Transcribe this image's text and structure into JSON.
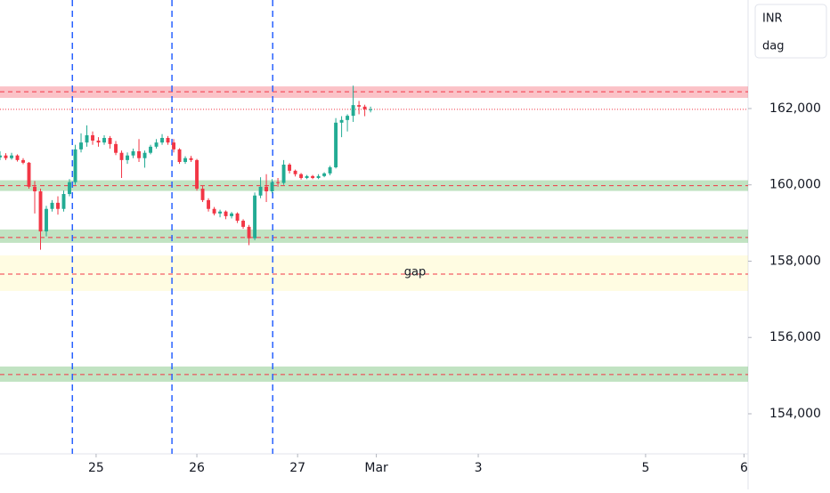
{
  "chart_data": {
    "type": "candlestick",
    "currency": "INR",
    "interval": "dag",
    "up_color": "#22ab94",
    "down_color": "#f23645",
    "x": [
      0,
      1,
      2,
      3,
      4,
      5,
      6,
      7,
      8,
      9,
      10,
      11,
      12,
      13,
      14,
      15,
      16,
      17,
      18,
      19,
      20,
      21,
      22,
      23,
      24,
      25,
      26,
      27,
      28,
      29,
      30,
      31,
      32,
      33,
      34,
      35,
      36,
      37,
      38,
      39,
      40,
      41,
      42,
      43,
      44,
      45,
      46,
      47,
      48,
      49,
      50,
      51,
      52,
      53,
      54,
      55,
      56,
      57,
      58,
      59,
      60,
      61,
      62,
      63,
      64
    ],
    "open": [
      160720,
      160770,
      160700,
      160770,
      160650,
      160580,
      159950,
      159830,
      158780,
      159370,
      159530,
      159370,
      159760,
      160070,
      160930,
      161110,
      161300,
      161160,
      161110,
      161230,
      161070,
      160840,
      160650,
      160770,
      160880,
      160700,
      160840,
      161000,
      161110,
      161230,
      161110,
      160930,
      160600,
      160700,
      160650,
      159900,
      159600,
      159370,
      159250,
      159300,
      159180,
      159250,
      159060,
      158900,
      158600,
      159720,
      159950,
      159830,
      160070,
      160050,
      160530,
      160370,
      160280,
      160180,
      160230,
      160180,
      160230,
      160300,
      160460,
      161630,
      161700,
      161810,
      162090,
      162050,
      161980
    ],
    "high": [
      160880,
      160830,
      160840,
      160800,
      160700,
      160600,
      160100,
      159900,
      159450,
      159600,
      159700,
      159850,
      160150,
      161050,
      161350,
      161560,
      161400,
      161250,
      161300,
      161280,
      161150,
      160900,
      160850,
      160950,
      161200,
      160900,
      161050,
      161200,
      161330,
      161280,
      161200,
      160960,
      160750,
      160760,
      160680,
      159970,
      159650,
      159420,
      159350,
      159330,
      159290,
      159280,
      159100,
      158950,
      159800,
      160200,
      160280,
      160150,
      160180,
      160650,
      160570,
      160400,
      160310,
      160260,
      160260,
      160280,
      160330,
      160500,
      161750,
      161800,
      161850,
      162600,
      162200,
      162100,
      162050
    ],
    "low": [
      160650,
      160650,
      160660,
      160610,
      160540,
      159900,
      159250,
      158300,
      158650,
      159300,
      159220,
      159300,
      159700,
      160000,
      160850,
      161000,
      161050,
      161000,
      161050,
      160950,
      160780,
      160180,
      160550,
      160700,
      160600,
      160450,
      160800,
      160950,
      161050,
      161050,
      160850,
      160550,
      160550,
      160600,
      159850,
      159550,
      159300,
      159200,
      159150,
      159100,
      159120,
      159000,
      158850,
      158420,
      158550,
      159650,
      159550,
      159780,
      159950,
      160000,
      160300,
      160220,
      160140,
      160150,
      160150,
      160150,
      160200,
      160250,
      160430,
      161250,
      161400,
      161650,
      161850,
      161800,
      161900
    ],
    "close": [
      160770,
      160700,
      160770,
      160650,
      160580,
      159950,
      159830,
      158780,
      159370,
      159530,
      159370,
      159760,
      160070,
      160930,
      161110,
      161300,
      161160,
      161110,
      161230,
      161070,
      160840,
      160650,
      160770,
      160880,
      160700,
      160840,
      161000,
      161110,
      161230,
      161110,
      160930,
      160600,
      160700,
      160650,
      159900,
      159600,
      159370,
      159250,
      159300,
      159180,
      159250,
      159060,
      158900,
      158600,
      159720,
      159950,
      159830,
      160070,
      160050,
      160530,
      160370,
      160280,
      160180,
      160230,
      160180,
      160230,
      160300,
      160460,
      161630,
      161700,
      161810,
      162090,
      162050,
      161980,
      161980
    ],
    "zones": [
      {
        "top": 162580,
        "bottom": 162280,
        "line": 162440,
        "color": "rgba(242,54,69,0.3)"
      },
      {
        "top": 160120,
        "bottom": 159840,
        "line": 159980,
        "color": "rgba(76,175,80,0.35)"
      },
      {
        "top": 158830,
        "bottom": 158480,
        "line": 158620,
        "color": "rgba(76,175,80,0.35)"
      },
      {
        "top": 158150,
        "bottom": 157220,
        "line": 157660,
        "color": "rgba(255,235,59,0.15)",
        "label": "gap"
      },
      {
        "top": 155240,
        "bottom": 154840,
        "line": 155030,
        "color": "rgba(76,175,80,0.35)"
      }
    ],
    "price_line": 161980,
    "vlines": [
      12.5,
      29.7,
      47.1
    ],
    "xlim": [
      0,
      129.2
    ],
    "xticks": [
      {
        "value": 16.6,
        "label": "25"
      },
      {
        "value": 34,
        "label": "26"
      },
      {
        "value": 51.4,
        "label": "27"
      },
      {
        "value": 65,
        "label": "Mar"
      },
      {
        "value": 82.6,
        "label": "3"
      },
      {
        "value": 111.5,
        "label": "5"
      },
      {
        "value": 128.5,
        "label": "6"
      }
    ],
    "ylim": [
      152950,
      164845
    ],
    "yticks": [
      {
        "value": 154000,
        "label": "154,000"
      },
      {
        "value": 156000,
        "label": "156,000"
      },
      {
        "value": 158000,
        "label": "158,000"
      },
      {
        "value": 160000,
        "label": "160,000"
      },
      {
        "value": 162000,
        "label": "162,000"
      }
    ]
  }
}
